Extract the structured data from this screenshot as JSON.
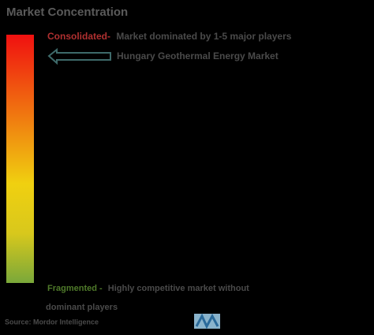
{
  "title": "Market Concentration",
  "consolidated": {
    "label": "Consolidated-",
    "text": "Market dominated by 1-5 major players"
  },
  "market": "Hungary Geothermal Energy Market",
  "fragmented": {
    "label": "Fragmented -",
    "text": "Highly competitive market without",
    "text_continued": "dominant players"
  },
  "source": "Source: Mordor Intelligence"
}
